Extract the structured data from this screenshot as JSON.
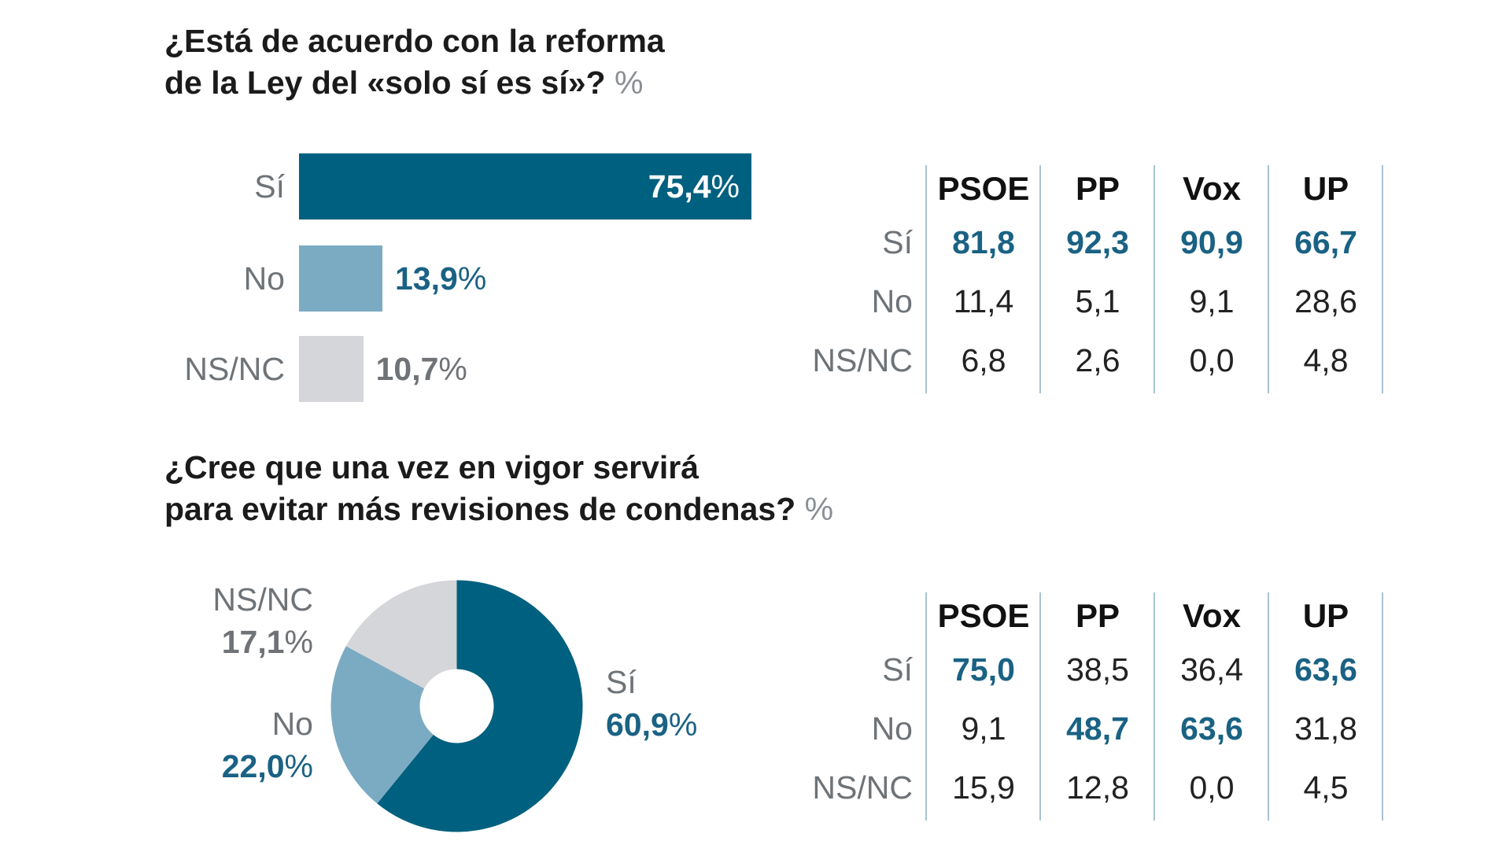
{
  "colors": {
    "dark": "#00607F",
    "medium": "#7BABC3",
    "light": "#D5D6D9",
    "highlight_text": "#1A6284",
    "muted_text": "#6E7378",
    "gray_value": "#6F7276",
    "divider": "#A7C3D4"
  },
  "section1": {
    "title_line1": "¿Está de acuerdo con la reforma",
    "title_line2": "de la Ley del «solo sí es sí»?",
    "unit": "%"
  },
  "section2": {
    "title_line1": "¿Cree que una vez en vigor servirá",
    "title_line2": "para evitar más revisiones de condenas?",
    "unit": "%"
  },
  "chart_data": [
    {
      "type": "bar",
      "orientation": "horizontal",
      "categories": [
        "Sí",
        "No",
        "NS/NC"
      ],
      "values": [
        75.4,
        13.9,
        10.7
      ],
      "value_labels": [
        "75,4",
        "13,9",
        "10,7"
      ],
      "unit": "%",
      "colors": [
        "#00607F",
        "#7BABC3",
        "#D5D6D9"
      ]
    },
    {
      "type": "table",
      "columns": [
        "PSOE",
        "PP",
        "Vox",
        "UP"
      ],
      "rows": [
        {
          "label": "Sí",
          "values": [
            "81,8",
            "92,3",
            "90,9",
            "66,7"
          ],
          "highlight": [
            true,
            true,
            true,
            true
          ]
        },
        {
          "label": "No",
          "values": [
            "11,4",
            "5,1",
            "9,1",
            "28,6"
          ],
          "highlight": [
            false,
            false,
            false,
            false
          ]
        },
        {
          "label": "NS/NC",
          "values": [
            "6,8",
            "2,6",
            "0,0",
            "4,8"
          ],
          "highlight": [
            false,
            false,
            false,
            false
          ]
        }
      ]
    },
    {
      "type": "pie",
      "donut": true,
      "slices": [
        {
          "label": "Sí",
          "value": 60.9,
          "value_label": "60,9",
          "color": "#00607F"
        },
        {
          "label": "No",
          "value": 22.0,
          "value_label": "22,0",
          "color": "#7BABC3"
        },
        {
          "label": "NS/NC",
          "value": 17.1,
          "value_label": "17,1",
          "color": "#D5D6D9"
        }
      ],
      "unit": "%"
    },
    {
      "type": "table",
      "columns": [
        "PSOE",
        "PP",
        "Vox",
        "UP"
      ],
      "rows": [
        {
          "label": "Sí",
          "values": [
            "75,0",
            "38,5",
            "36,4",
            "63,6"
          ],
          "highlight": [
            true,
            false,
            false,
            true
          ]
        },
        {
          "label": "No",
          "values": [
            "9,1",
            "48,7",
            "63,6",
            "31,8"
          ],
          "highlight": [
            false,
            true,
            true,
            false
          ]
        },
        {
          "label": "NS/NC",
          "values": [
            "15,9",
            "12,8",
            "0,0",
            "4,5"
          ],
          "highlight": [
            false,
            false,
            false,
            false
          ]
        }
      ]
    }
  ]
}
